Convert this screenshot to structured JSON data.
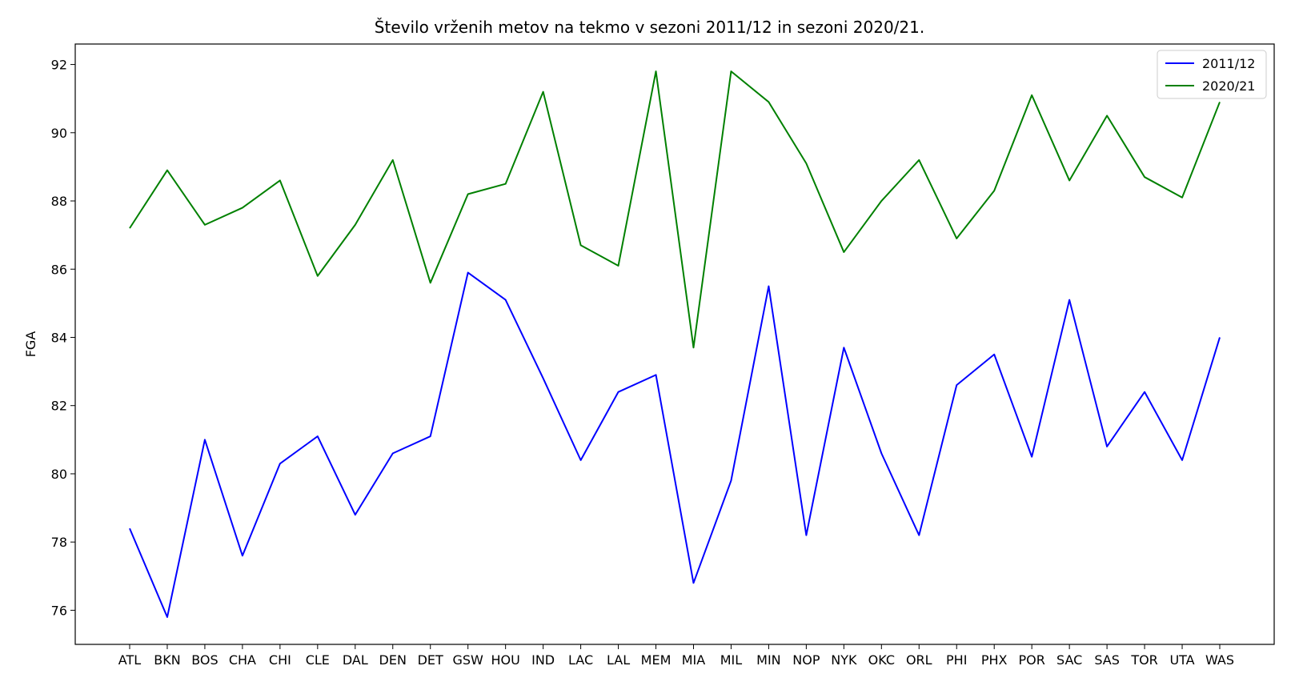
{
  "chart_data": {
    "type": "line",
    "title": "Število vrženih metov na tekmo v sezoni 2011/12 in sezoni 2020/21.",
    "xlabel": "",
    "ylabel": "FGA",
    "ylim": [
      75,
      92.6
    ],
    "yticks": [
      76,
      78,
      80,
      82,
      84,
      86,
      88,
      90,
      92
    ],
    "grid": false,
    "legend_position": "top-right",
    "categories": [
      "ATL",
      "BKN",
      "BOS",
      "CHA",
      "CHI",
      "CLE",
      "DAL",
      "DEN",
      "DET",
      "GSW",
      "HOU",
      "IND",
      "LAC",
      "LAL",
      "MEM",
      "MIA",
      "MIL",
      "MIN",
      "NOP",
      "NYK",
      "OKC",
      "ORL",
      "PHI",
      "PHX",
      "POR",
      "SAC",
      "SAS",
      "TOR",
      "UTA",
      "WAS"
    ],
    "series": [
      {
        "name": "2011/12",
        "color": "#0000ff",
        "values": [
          78.4,
          75.8,
          81.0,
          77.6,
          80.3,
          81.1,
          78.8,
          80.6,
          81.1,
          85.9,
          85.1,
          82.8,
          80.4,
          82.4,
          82.9,
          76.8,
          79.8,
          85.5,
          78.2,
          83.7,
          80.6,
          78.2,
          82.6,
          83.5,
          80.5,
          85.1,
          80.8,
          82.4,
          80.4,
          84.0
        ]
      },
      {
        "name": "2020/21",
        "color": "#008000",
        "values": [
          87.2,
          88.9,
          87.3,
          87.8,
          88.6,
          85.8,
          87.3,
          89.2,
          85.6,
          88.2,
          88.5,
          91.2,
          86.7,
          86.1,
          91.8,
          83.7,
          91.8,
          90.9,
          89.1,
          86.5,
          88.0,
          89.2,
          86.9,
          88.3,
          91.1,
          88.6,
          90.5,
          88.7,
          88.1,
          90.9
        ]
      }
    ]
  }
}
